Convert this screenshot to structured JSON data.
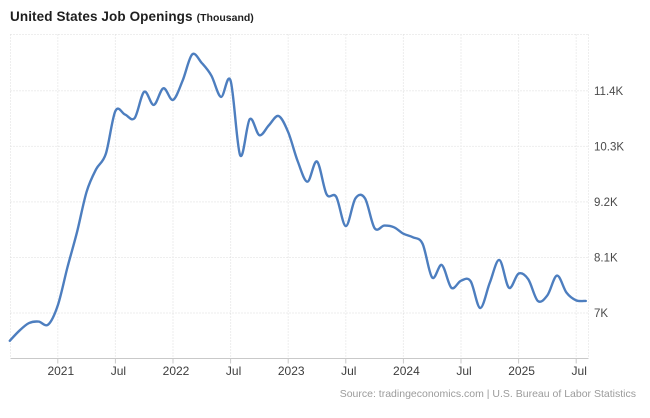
{
  "header": {
    "title": "United States Job Openings",
    "unit_suffix": "(Thousand)"
  },
  "footer": {
    "source_text": "Source: tradingeconomics.com | U.S. Bureau of Labor Statistics"
  },
  "colors": {
    "line": "#4d7ebf",
    "grid": "#dcdcdc",
    "axis": "#c9c9c9",
    "tick": "#c9c9c9",
    "x_label": "#3d3d3d",
    "y_label": "#4a4a4a",
    "title": "#1f1f1f",
    "source": "#9b9b9b",
    "background": "#ffffff"
  },
  "chart_data": {
    "type": "line",
    "title": "United States Job Openings (Thousand)",
    "xlabel": "",
    "ylabel": "",
    "unit": "Thousand",
    "legend": false,
    "grid": true,
    "y_axis_side": "right",
    "ylim": [
      6.1,
      12.5
    ],
    "months": [
      "2020-08",
      "2020-09",
      "2020-10",
      "2020-11",
      "2020-12",
      "2021-01",
      "2021-02",
      "2021-03",
      "2021-04",
      "2021-05",
      "2021-06",
      "2021-07",
      "2021-08",
      "2021-09",
      "2021-10",
      "2021-11",
      "2021-12",
      "2022-01",
      "2022-02",
      "2022-03",
      "2022-04",
      "2022-05",
      "2022-06",
      "2022-07",
      "2022-08",
      "2022-09",
      "2022-10",
      "2022-11",
      "2022-12",
      "2023-01",
      "2023-02",
      "2023-03",
      "2023-04",
      "2023-05",
      "2023-06",
      "2023-07",
      "2023-08",
      "2023-09",
      "2023-10",
      "2023-11",
      "2023-12",
      "2024-01",
      "2024-02",
      "2024-03",
      "2024-04",
      "2024-05",
      "2024-06",
      "2024-07",
      "2024-08",
      "2024-09",
      "2024-10",
      "2024-11",
      "2024-12",
      "2025-01",
      "2025-02",
      "2025-03",
      "2025-04",
      "2025-05",
      "2025-06",
      "2025-07",
      "2025-08"
    ],
    "values": [
      6.45,
      6.65,
      6.8,
      6.83,
      6.77,
      7.15,
      7.9,
      8.6,
      9.4,
      9.85,
      10.15,
      11.0,
      10.93,
      10.86,
      11.38,
      11.12,
      11.45,
      11.22,
      11.6,
      12.12,
      11.95,
      11.7,
      11.28,
      11.6,
      10.12,
      10.84,
      10.52,
      10.72,
      10.9,
      10.58,
      10.0,
      9.6,
      10.0,
      9.35,
      9.3,
      8.72,
      9.27,
      9.27,
      8.68,
      8.73,
      8.7,
      8.57,
      8.5,
      8.37,
      7.7,
      7.95,
      7.5,
      7.64,
      7.63,
      7.1,
      7.6,
      8.05,
      7.5,
      7.78,
      7.67,
      7.24,
      7.35,
      7.74,
      7.4,
      7.25,
      7.24
    ],
    "y_ticks": [
      {
        "label": "7K",
        "value": 7
      },
      {
        "label": "8.1K",
        "value": 8.1
      },
      {
        "label": "9.2K",
        "value": 9.2
      },
      {
        "label": "10.3K",
        "value": 10.3
      },
      {
        "label": "11.4K",
        "value": 11.4
      }
    ],
    "x_ticks": [
      {
        "label": "2021",
        "index": 5
      },
      {
        "label": "Jul",
        "index": 11
      },
      {
        "label": "2022",
        "index": 17
      },
      {
        "label": "Jul",
        "index": 23
      },
      {
        "label": "2023",
        "index": 29
      },
      {
        "label": "Jul",
        "index": 35
      },
      {
        "label": "2024",
        "index": 41
      },
      {
        "label": "Jul",
        "index": 47
      },
      {
        "label": "2025",
        "index": 53
      },
      {
        "label": "Jul",
        "index": 59
      }
    ]
  }
}
